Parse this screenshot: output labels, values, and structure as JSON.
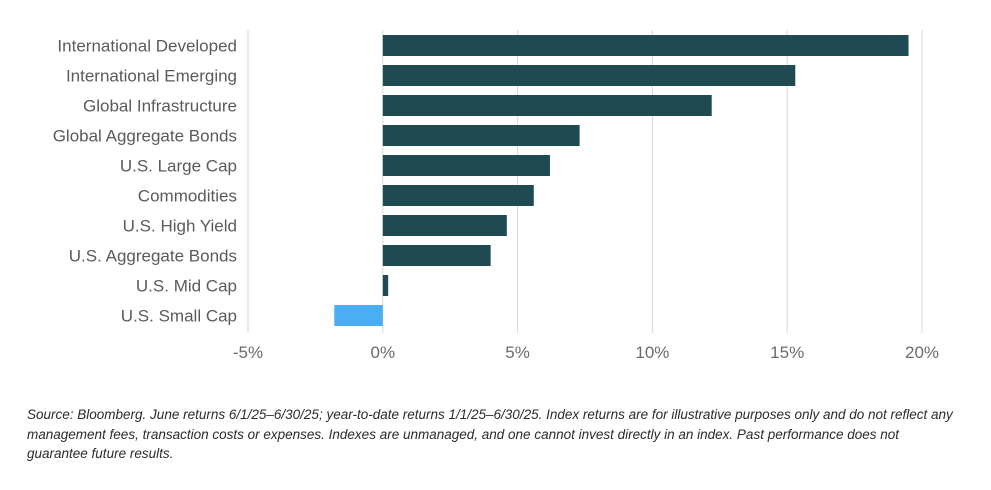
{
  "chart_data": {
    "type": "bar",
    "orientation": "horizontal",
    "categories": [
      "International Developed",
      "International Emerging",
      "Global Infrastructure",
      "Global Aggregate Bonds",
      "U.S. Large Cap",
      "Commodities",
      "U.S. High Yield",
      "U.S. Aggregate Bonds",
      "U.S. Mid Cap",
      "U.S. Small Cap"
    ],
    "values": [
      19.5,
      15.3,
      12.2,
      7.3,
      6.2,
      5.6,
      4.6,
      4.0,
      0.2,
      -1.8
    ],
    "xlim": [
      -5,
      20
    ],
    "xticks": [
      -5,
      0,
      5,
      10,
      15,
      20
    ],
    "tick_labels": [
      "-5%",
      "0%",
      "5%",
      "10%",
      "15%",
      "20%"
    ],
    "grid": "vertical",
    "colors": {
      "positive": "#1f4a52",
      "negative": "#4aaef2"
    }
  },
  "footnote": "Source: Bloomberg. June returns 6/1/25–6/30/25; year-to-date returns 1/1/25–6/30/25. Index returns are for illustrative purposes only and do not reflect any management fees, transaction costs or expenses. Indexes are unmanaged, and one cannot invest directly in an index. Past performance does not guarantee future results."
}
